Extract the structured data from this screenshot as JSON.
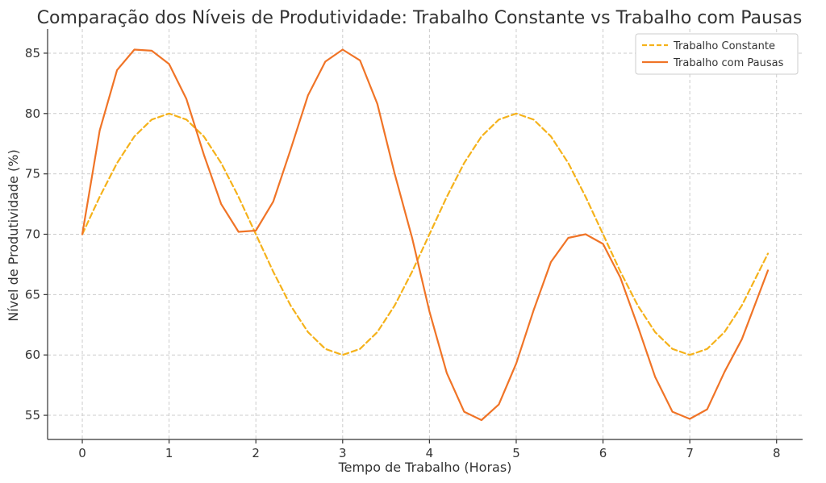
{
  "chart_data": {
    "type": "line",
    "title": "Comparação dos Níveis de Produtividade: Trabalho Constante vs Trabalho com Pausas",
    "xlabel": "Tempo de Trabalho (Horas)",
    "ylabel": "Nível de Produtividade (%)",
    "xlim": [
      -0.4,
      8.3
    ],
    "ylim": [
      53,
      87
    ],
    "xticks": [
      0,
      1,
      2,
      3,
      4,
      5,
      6,
      7,
      8
    ],
    "yticks": [
      55,
      60,
      65,
      70,
      75,
      80,
      85
    ],
    "grid": true,
    "legend_position": "top-right",
    "series": [
      {
        "name": "Trabalho Constante",
        "color": "#f5b21b",
        "style": "dashed",
        "x": [
          0,
          0.2,
          0.4,
          0.6,
          0.8,
          1.0,
          1.2,
          1.4,
          1.6,
          1.8,
          2.0,
          2.2,
          2.4,
          2.6,
          2.8,
          3.0,
          3.2,
          3.4,
          3.6,
          3.8,
          4.0,
          4.2,
          4.4,
          4.6,
          4.8,
          5.0,
          5.2,
          5.4,
          5.6,
          5.8,
          6.0,
          6.2,
          6.4,
          6.6,
          6.8,
          7.0,
          7.2,
          7.4,
          7.6,
          7.9
        ],
        "y": [
          70,
          73.1,
          75.9,
          78.1,
          79.5,
          80,
          79.5,
          78.1,
          75.9,
          73.1,
          70,
          66.9,
          64.1,
          61.9,
          60.5,
          60,
          60.5,
          61.9,
          64.1,
          66.9,
          70,
          73.1,
          75.9,
          78.1,
          79.5,
          80,
          79.5,
          78.1,
          75.9,
          73.1,
          70,
          66.9,
          64.1,
          61.9,
          60.5,
          60,
          60.5,
          61.9,
          64.1,
          68.4
        ]
      },
      {
        "name": "Trabalho com Pausas",
        "color": "#f07427",
        "style": "solid",
        "x": [
          0,
          0.2,
          0.4,
          0.6,
          0.8,
          1.0,
          1.2,
          1.4,
          1.6,
          1.8,
          2.0,
          2.2,
          2.4,
          2.6,
          2.8,
          3.0,
          3.2,
          3.4,
          3.6,
          3.8,
          4.0,
          4.2,
          4.4,
          4.6,
          4.8,
          5.0,
          5.2,
          5.4,
          5.6,
          5.8,
          6.0,
          6.2,
          6.4,
          6.6,
          6.8,
          7.0,
          7.2,
          7.4,
          7.6,
          7.9
        ],
        "y": [
          70,
          78.6,
          83.6,
          85.3,
          85.2,
          84.1,
          81.2,
          76.6,
          72.5,
          70.2,
          70.3,
          72.7,
          77.0,
          81.5,
          84.3,
          85.3,
          84.4,
          80.8,
          75.0,
          69.7,
          63.6,
          58.5,
          55.3,
          54.6,
          55.9,
          59.3,
          63.7,
          67.7,
          69.7,
          70.0,
          69.2,
          66.4,
          62.4,
          58.2,
          55.3,
          54.7,
          55.5,
          58.6,
          61.3,
          67.0
        ]
      }
    ]
  }
}
